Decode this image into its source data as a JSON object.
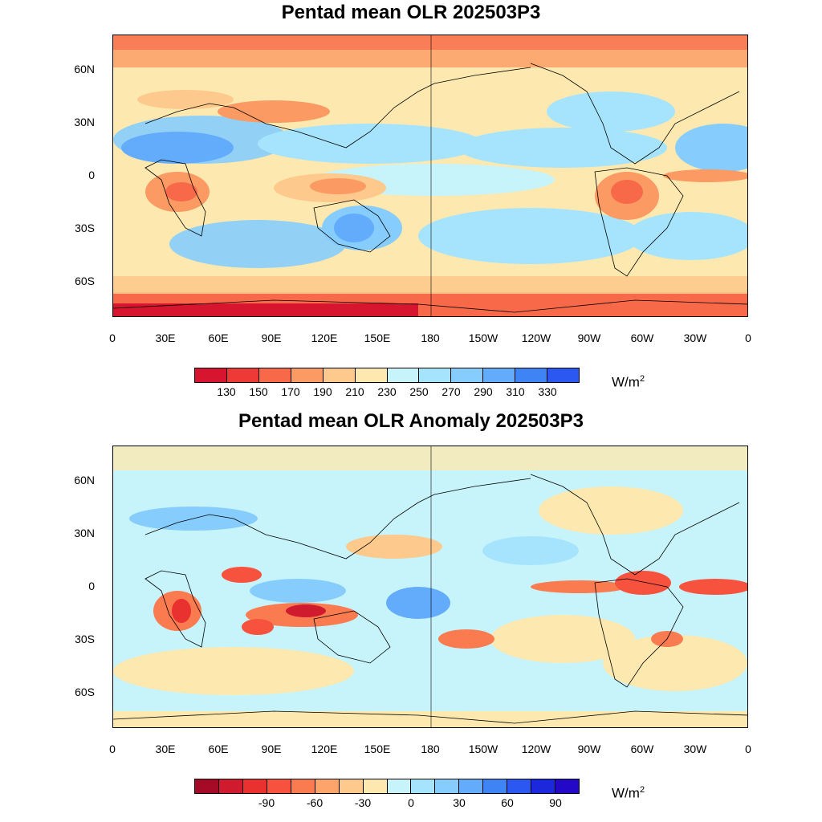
{
  "maps": [
    {
      "title": "Pentad mean OLR 202503P3",
      "units_base": "W/m",
      "units_exp": "2",
      "colorbar": {
        "colors": [
          "#d7152f",
          "#ee3a37",
          "#f8694a",
          "#fb9a63",
          "#fdc98c",
          "#fde9b0",
          "#c7f3fb",
          "#a6e4fd",
          "#86cdfd",
          "#63acfb",
          "#3f84f5",
          "#2a58f0"
        ],
        "labels": [
          "130",
          "150",
          "170",
          "190",
          "210",
          "230",
          "250",
          "270",
          "290",
          "310",
          "330"
        ]
      }
    },
    {
      "title": "Pentad mean OLR Anomaly 202503P3",
      "units_base": "W/m",
      "units_exp": "2",
      "colorbar": {
        "colors": [
          "#a50a26",
          "#d01a2e",
          "#e9322f",
          "#f6523d",
          "#fb7b50",
          "#fca46a",
          "#fdc98c",
          "#fde9b0",
          "#c7f3fb",
          "#a6e4fd",
          "#86cdfd",
          "#63acfb",
          "#3f84f5",
          "#2a58f0",
          "#1c28dc",
          "#2408c8"
        ],
        "labels": [
          "-90",
          "-60",
          "-30",
          "0",
          "30",
          "60",
          "90"
        ]
      }
    }
  ],
  "axes": {
    "lat_labels": [
      "60N",
      "30N",
      "0",
      "30S",
      "60S"
    ],
    "lon_labels": [
      "0",
      "30E",
      "60E",
      "90E",
      "120E",
      "150E",
      "180",
      "150W",
      "120W",
      "90W",
      "60W",
      "30W",
      "0"
    ]
  }
}
